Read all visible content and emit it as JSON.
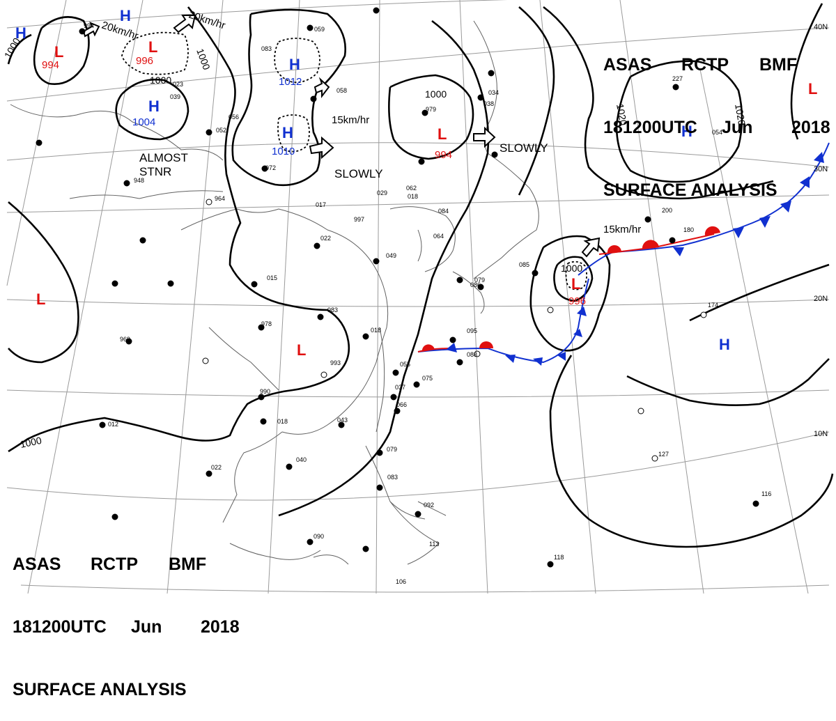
{
  "header": {
    "line1": {
      "a": "ASAS",
      "b": "RCTP",
      "c": "BMF"
    },
    "line2": {
      "a": "181200UTC",
      "b": "Jun",
      "c": "2018"
    },
    "line3": "SURFACE ANALYSIS"
  },
  "colors": {
    "high": "#1030d0",
    "low": "#e01010",
    "isobar": "#000000",
    "coast": "#606060",
    "grid": "#9a9a9a",
    "cold_front": "#1030d0",
    "warm_front": "#e01010"
  },
  "lat_labels": [
    "40N",
    "30N",
    "20N",
    "10N"
  ],
  "isobar_labels": [
    "1000",
    "1000",
    "1000",
    "1000",
    "1000",
    "1000",
    "1020",
    "1020"
  ],
  "pressure_centers": [
    {
      "type": "H",
      "value": ""
    },
    {
      "type": "H",
      "value": ""
    },
    {
      "type": "L",
      "value": "994"
    },
    {
      "type": "L",
      "value": "996"
    },
    {
      "type": "H",
      "value": "1004"
    },
    {
      "type": "H",
      "value": "1012"
    },
    {
      "type": "H",
      "value": "1010"
    },
    {
      "type": "L",
      "value": "994"
    },
    {
      "type": "H",
      "value": ""
    },
    {
      "type": "L",
      "value": ""
    },
    {
      "type": "L",
      "value": ""
    },
    {
      "type": "L",
      "value": ""
    },
    {
      "type": "L",
      "value": "996"
    },
    {
      "type": "H",
      "value": ""
    }
  ],
  "motion_labels": [
    "20km/hr",
    "20km/hr",
    "15km/hr",
    "SLOWLY",
    "SLOWLY",
    "15km/hr",
    "ALMOST",
    "STNR"
  ],
  "station_values": [
    "994",
    "023",
    "052",
    "948",
    "964",
    "017",
    "997",
    "022",
    "029",
    "018",
    "015",
    "983",
    "978",
    "993",
    "969",
    "012",
    "990",
    "018",
    "022",
    "040",
    "043",
    "037",
    "055",
    "075",
    "066",
    "079",
    "083",
    "092",
    "113",
    "106",
    "090",
    "979",
    "034",
    "038",
    "084",
    "064",
    "049",
    "018",
    "095",
    "088",
    "085",
    "086",
    "079",
    "227",
    "200",
    "180",
    "174",
    "127",
    "116",
    "118",
    "059",
    "056",
    "072",
    "058",
    "062",
    "054",
    "083",
    "039"
  ]
}
